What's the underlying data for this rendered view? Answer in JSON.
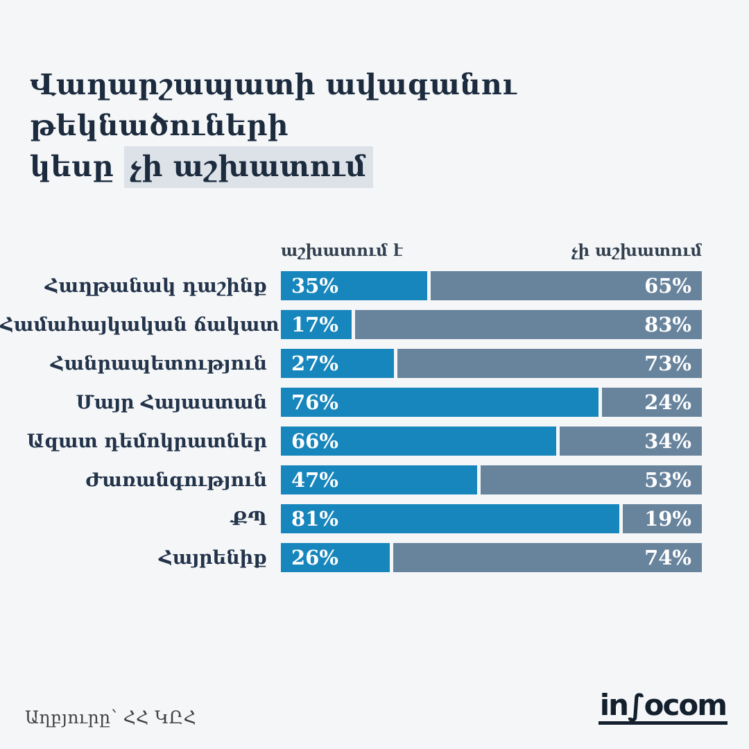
{
  "page": {
    "background": "#f5f6f8"
  },
  "title": {
    "line1": "Վաղարշապատի ավագանու թեկնածուների",
    "line2_prefix": "կեսը ",
    "line2_highlight": "չի աշխատում",
    "highlight_bg": "#dde2e8"
  },
  "chart_data": {
    "type": "bar",
    "orientation": "horizontal-stacked",
    "unit": "%",
    "xlim": [
      0,
      100
    ],
    "grid": false,
    "legend_position": "top",
    "categories": [
      "Հաղթանակ դաշինք",
      "Համահայկական ճակատ",
      "Հանրապետություն",
      "Մայր Հայաստան",
      "Ազատ դեմոկրատներ",
      "Ժառանգություն",
      "ՔՊ",
      "Հայրենիք"
    ],
    "series": [
      {
        "name": "աշխատում է",
        "color": "#1786bd",
        "values": [
          35,
          17,
          27,
          76,
          66,
          47,
          81,
          26
        ],
        "labels": [
          "35%",
          "17%",
          "27%",
          "76%",
          "66%",
          "47%",
          "81%",
          "26%"
        ]
      },
      {
        "name": "չի աշխատում",
        "color": "#68849d",
        "values": [
          65,
          83,
          73,
          24,
          34,
          53,
          19,
          74
        ],
        "labels": [
          "65%",
          "83%",
          "73%",
          "24%",
          "34%",
          "53%",
          "19%",
          "74%"
        ]
      }
    ]
  },
  "footer": {
    "source": "Աղբյուրը՝ ՀՀ ԿԸՀ",
    "logo_prefix": "in",
    "logo_f": "∫",
    "logo_suffix": "ocom",
    "logo_name": "infocom",
    "logo_color": "#141f2d"
  }
}
